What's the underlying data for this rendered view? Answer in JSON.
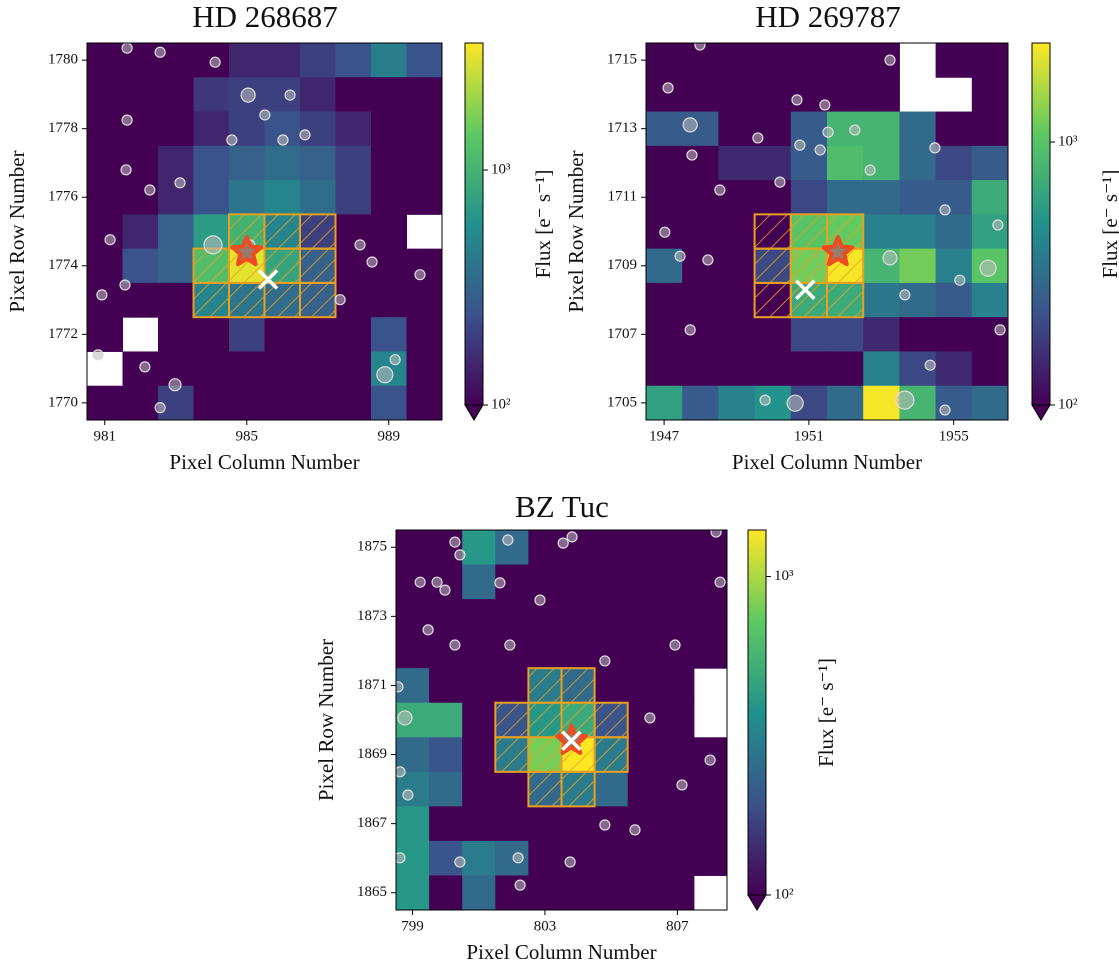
{
  "chart_data": [
    {
      "type": "heatmap",
      "title": "HD 268687",
      "x_label": "Pixel Column Number",
      "y_label": "Pixel Row Number",
      "colorbar_label": "Flux [e⁻ s⁻¹]",
      "x": [
        981,
        982,
        983,
        984,
        985,
        986,
        987,
        988,
        989,
        990
      ],
      "y": [
        1780,
        1779,
        1778,
        1777,
        1776,
        1775,
        1774,
        1773,
        1772,
        1771,
        1770
      ],
      "values": [
        [
          100,
          100,
          100,
          100,
          150,
          150,
          200,
          250,
          450,
          250
        ],
        [
          100,
          100,
          100,
          180,
          200,
          200,
          150,
          100,
          100,
          100
        ],
        [
          100,
          100,
          100,
          150,
          200,
          250,
          200,
          150,
          100,
          100
        ],
        [
          100,
          100,
          150,
          250,
          300,
          350,
          300,
          200,
          100,
          100
        ],
        [
          100,
          100,
          150,
          250,
          400,
          500,
          350,
          200,
          100,
          100
        ],
        [
          100,
          150,
          300,
          700,
          1000,
          500,
          200,
          100,
          100,
          null
        ],
        [
          100,
          250,
          300,
          1200,
          3000,
          800,
          300,
          100,
          100,
          100
        ],
        [
          100,
          100,
          100,
          500,
          400,
          350,
          300,
          100,
          100,
          100
        ],
        [
          100,
          null,
          100,
          100,
          200,
          100,
          100,
          100,
          250,
          100
        ],
        [
          null,
          100,
          100,
          100,
          100,
          100,
          100,
          100,
          500,
          100
        ],
        [
          100,
          100,
          200,
          100,
          100,
          100,
          100,
          100,
          250,
          100
        ]
      ],
      "xlim": [
        980.5,
        990.5
      ],
      "ylim": [
        1769.5,
        1780.5
      ],
      "xticks": [
        981,
        985,
        989
      ],
      "yticks": [
        1770,
        1772,
        1774,
        1776,
        1778,
        1780
      ],
      "clim": [
        100,
        3470
      ],
      "cticks": [
        {
          "value": 100,
          "label": "10²"
        },
        {
          "value": 1000,
          "label": "10³"
        }
      ],
      "log_color": true,
      "aperture": [
        [
          985,
          1775
        ],
        [
          986,
          1775
        ],
        [
          987,
          1775
        ],
        [
          984,
          1774
        ],
        [
          985,
          1774
        ],
        [
          986,
          1774
        ],
        [
          987,
          1774
        ],
        [
          984,
          1773
        ],
        [
          985,
          1773
        ],
        [
          986,
          1773
        ],
        [
          987,
          1773
        ]
      ],
      "target": {
        "x": 985.0,
        "y": 1774.4
      },
      "cross": {
        "x": 985.6,
        "y": 1773.6
      },
      "sources": {
        "x": [
          981.63,
          982.56,
          984.11,
          985.04,
          986.22,
          986.64,
          986.02,
          985.51,
          984.58,
          981.63,
          982.27,
          981.6,
          983.12,
          984.05,
          985.09,
          988.19,
          988.53,
          989.88,
          980.92,
          981.57,
          980.81,
          982.13,
          982.98,
          982.56,
          988.89,
          989.18,
          987.63,
          981.15
        ],
        "y": [
          1780.35,
          1780.23,
          1779.94,
          1778.98,
          1778.98,
          1777.82,
          1777.67,
          1778.4,
          1777.67,
          1778.25,
          1776.21,
          1776.8,
          1776.42,
          1774.61,
          1774.61,
          1774.61,
          1774.11,
          1773.74,
          1773.15,
          1773.44,
          1771.4,
          1771.05,
          1770.53,
          1769.86,
          1770.82,
          1771.26,
          1773.01,
          1774.76
        ],
        "size": [
          5,
          5,
          5,
          7,
          5,
          5,
          5,
          5,
          5,
          5,
          5,
          5,
          5,
          9,
          5,
          5,
          5,
          5,
          5,
          5,
          5,
          5,
          6,
          5,
          8,
          5,
          5,
          5
        ]
      }
    },
    {
      "type": "heatmap",
      "title": "HD 269787",
      "x_label": "Pixel Column Number",
      "y_label": "Pixel Row Number",
      "colorbar_label": "Flux [e⁻ s⁻¹]",
      "x": [
        1947,
        1948,
        1949,
        1950,
        1951,
        1952,
        1953,
        1954,
        1955,
        1956
      ],
      "y": [
        1715,
        1714,
        1713,
        1712,
        1711,
        1710,
        1709,
        1708,
        1707,
        1706,
        1705
      ],
      "values": [
        [
          100,
          100,
          100,
          100,
          100,
          100,
          100,
          null,
          100,
          100
        ],
        [
          100,
          100,
          100,
          100,
          100,
          100,
          100,
          null,
          null,
          100
        ],
        [
          250,
          250,
          100,
          100,
          250,
          800,
          800,
          300,
          100,
          100
        ],
        [
          100,
          100,
          150,
          150,
          250,
          900,
          800,
          300,
          200,
          250
        ],
        [
          100,
          100,
          100,
          100,
          200,
          300,
          300,
          250,
          250,
          700
        ],
        [
          100,
          100,
          100,
          100,
          1000,
          1100,
          400,
          400,
          300,
          600
        ],
        [
          300,
          100,
          100,
          200,
          1200,
          2300,
          800,
          1200,
          400,
          1000
        ],
        [
          100,
          100,
          100,
          100,
          700,
          700,
          350,
          300,
          250,
          400
        ],
        [
          100,
          100,
          100,
          100,
          200,
          200,
          150,
          100,
          100,
          100
        ],
        [
          100,
          100,
          100,
          100,
          100,
          100,
          400,
          200,
          150,
          100
        ],
        [
          600,
          250,
          400,
          500,
          200,
          300,
          2300,
          800,
          250,
          300
        ]
      ],
      "xlim": [
        1946.5,
        1956.5
      ],
      "ylim": [
        1704.5,
        1715.5
      ],
      "xticks": [
        1947,
        1951,
        1955
      ],
      "yticks": [
        1705,
        1707,
        1709,
        1711,
        1713,
        1715
      ],
      "clim": [
        100,
        2380
      ],
      "cticks": [
        {
          "value": 100,
          "label": "10²"
        },
        {
          "value": 1000,
          "label": "10³"
        }
      ],
      "log_color": true,
      "aperture": [
        [
          1950,
          1710
        ],
        [
          1951,
          1710
        ],
        [
          1952,
          1710
        ],
        [
          1950,
          1709
        ],
        [
          1951,
          1709
        ],
        [
          1952,
          1709
        ],
        [
          1950,
          1708
        ],
        [
          1951,
          1708
        ],
        [
          1952,
          1708
        ]
      ],
      "target": {
        "x": 1951.8,
        "y": 1709.4
      },
      "cross": {
        "x": 1950.9,
        "y": 1708.3
      },
      "sources": {
        "x": [
          1947.11,
          1947.72,
          1947.77,
          1948.54,
          1947.02,
          1947.44,
          1948.21,
          1949.59,
          1950.2,
          1950.67,
          1950.75,
          1951.31,
          1951.53,
          1952.27,
          1951.44,
          1952.69,
          1954.48,
          1954.76,
          1953.24,
          1953.65,
          1955.17,
          1955.95,
          1956.22,
          1956.28,
          1954.35,
          1954.76,
          1953.65,
          1950.62,
          1949.79,
          1947.72,
          1953.24,
          1947.99
        ],
        "y": [
          1714.19,
          1713.11,
          1712.23,
          1711.21,
          1709.98,
          1709.28,
          1709.17,
          1712.73,
          1711.44,
          1713.84,
          1712.52,
          1712.38,
          1712.9,
          1712.96,
          1713.69,
          1711.79,
          1712.44,
          1710.63,
          1709.23,
          1708.15,
          1708.58,
          1708.93,
          1710.19,
          1707.13,
          1706.1,
          1704.79,
          1705.08,
          1704.99,
          1705.08,
          1707.13,
          1715.0,
          1715.44
        ],
        "size": [
          5,
          7,
          5,
          5,
          5,
          5,
          5,
          5,
          5,
          5,
          5,
          5,
          5,
          5,
          5,
          5,
          5,
          5,
          7,
          5,
          5,
          8,
          5,
          5,
          5,
          5,
          9,
          8,
          5,
          5,
          5,
          5
        ]
      }
    },
    {
      "type": "heatmap",
      "title": "BZ Tuc",
      "x_label": "Pixel Column Number",
      "y_label": "Pixel Row Number",
      "colorbar_label": "Flux [e⁻ s⁻¹]",
      "x": [
        799,
        800,
        801,
        802,
        803,
        804,
        805,
        806,
        807,
        808
      ],
      "y": [
        1875,
        1874,
        1873,
        1872,
        1871,
        1870,
        1869,
        1868,
        1867,
        1866,
        1865
      ],
      "values": [
        [
          100,
          100,
          400,
          250,
          100,
          100,
          100,
          100,
          100,
          100
        ],
        [
          100,
          100,
          250,
          100,
          100,
          100,
          100,
          100,
          100,
          100
        ],
        [
          100,
          100,
          100,
          100,
          100,
          100,
          100,
          100,
          100,
          100
        ],
        [
          100,
          100,
          100,
          100,
          100,
          100,
          100,
          100,
          100,
          100
        ],
        [
          250,
          100,
          100,
          100,
          300,
          250,
          100,
          100,
          100,
          null
        ],
        [
          500,
          500,
          100,
          200,
          400,
          500,
          200,
          100,
          100,
          null
        ],
        [
          250,
          200,
          100,
          300,
          800,
          1400,
          300,
          100,
          100,
          100
        ],
        [
          300,
          250,
          100,
          100,
          250,
          300,
          250,
          100,
          100,
          100
        ],
        [
          400,
          100,
          100,
          100,
          100,
          100,
          100,
          100,
          100,
          100
        ],
        [
          400,
          200,
          300,
          250,
          100,
          100,
          100,
          100,
          100,
          100
        ],
        [
          400,
          100,
          250,
          100,
          100,
          100,
          100,
          100,
          100,
          null
        ]
      ],
      "xlim": [
        798.5,
        808.5
      ],
      "ylim": [
        1864.5,
        1875.5
      ],
      "xticks": [
        799,
        803,
        807
      ],
      "yticks": [
        1865,
        1867,
        1869,
        1871,
        1873,
        1875
      ],
      "clim": [
        100,
        1400
      ],
      "cticks": [
        {
          "value": 100,
          "label": "10²"
        },
        {
          "value": 1000,
          "label": "10³"
        }
      ],
      "log_color": true,
      "aperture": [
        [
          803,
          1871
        ],
        [
          804,
          1871
        ],
        [
          802,
          1870
        ],
        [
          803,
          1870
        ],
        [
          804,
          1870
        ],
        [
          805,
          1870
        ],
        [
          802,
          1869
        ],
        [
          803,
          1869
        ],
        [
          804,
          1869
        ],
        [
          805,
          1869
        ],
        [
          803,
          1868
        ],
        [
          804,
          1868
        ]
      ],
      "target": {
        "x": 803.8,
        "y": 1869.4
      },
      "cross": {
        "x": 803.8,
        "y": 1869.4
      },
      "sources": {
        "x": [
          800.28,
          800.43,
          801.88,
          803.55,
          803.82,
          799.23,
          799.74,
          799.98,
          801.64,
          802.85,
          799.47,
          800.28,
          801.94,
          804.81,
          806.93,
          798.56,
          798.77,
          806.17,
          807.14,
          798.62,
          798.86,
          804.81,
          805.72,
          798.62,
          800.43,
          802.19,
          802.25,
          803.76,
          807.99,
          808.29,
          808.17
        ],
        "y": [
          1875.15,
          1874.78,
          1875.21,
          1875.12,
          1875.3,
          1873.99,
          1873.99,
          1873.76,
          1873.97,
          1873.47,
          1872.61,
          1872.17,
          1872.17,
          1871.71,
          1872.17,
          1870.96,
          1870.06,
          1870.06,
          1868.12,
          1868.5,
          1867.83,
          1866.96,
          1866.82,
          1866.01,
          1865.89,
          1866.01,
          1865.22,
          1865.89,
          1868.84,
          1873.99,
          1875.44
        ],
        "size": [
          5,
          5,
          5,
          5,
          5,
          5,
          5,
          5,
          5,
          5,
          5,
          5,
          5,
          5,
          5,
          5,
          7,
          5,
          5,
          5,
          5,
          5,
          5,
          5,
          5,
          5,
          5,
          5,
          5,
          5,
          5
        ]
      }
    }
  ]
}
